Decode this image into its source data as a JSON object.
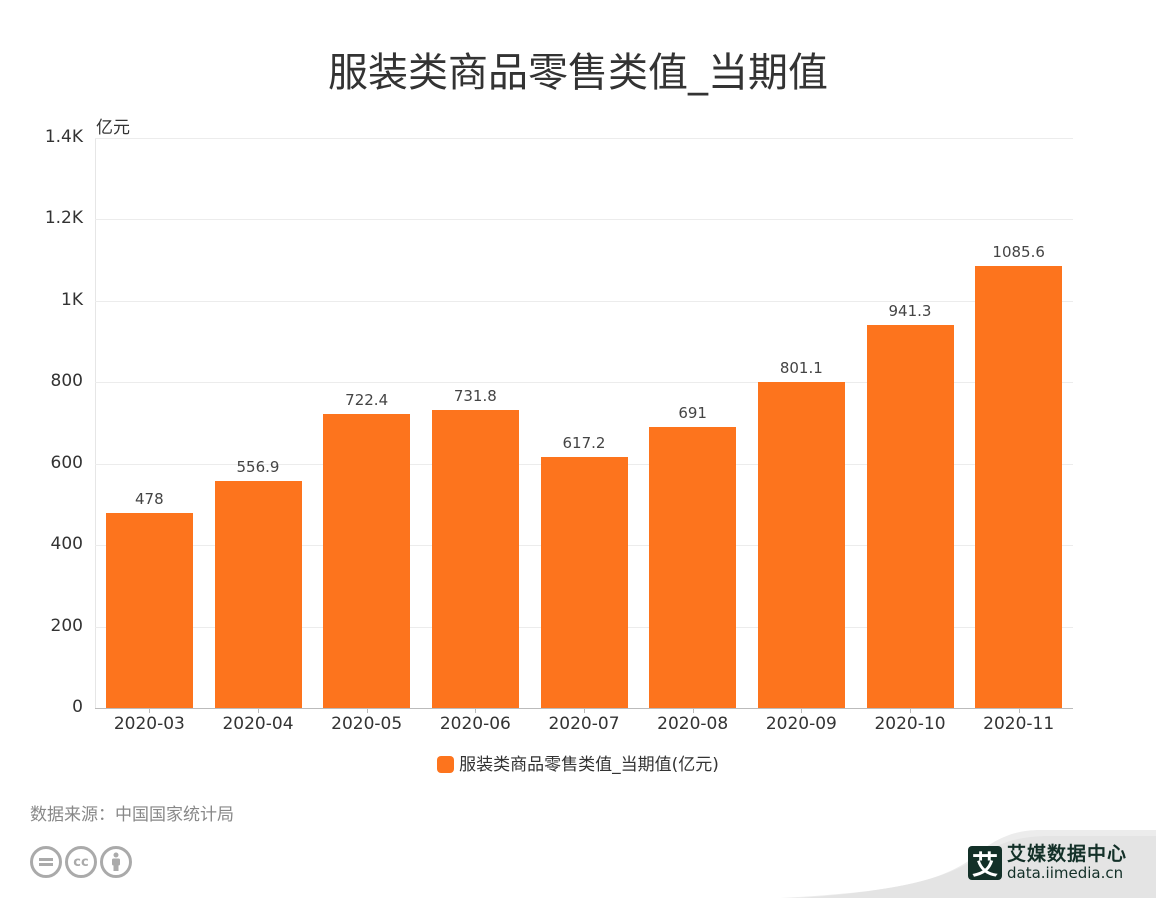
{
  "title": "服装类商品零售类值_当期值",
  "unit_label": "亿元",
  "y_ticks": [
    {
      "label": "1.4K",
      "value": 1400
    },
    {
      "label": "1.2K",
      "value": 1200
    },
    {
      "label": "1K",
      "value": 1000
    },
    {
      "label": "800",
      "value": 800
    },
    {
      "label": "600",
      "value": 600
    },
    {
      "label": "400",
      "value": 400
    },
    {
      "label": "200",
      "value": 200
    },
    {
      "label": "0",
      "value": 0
    }
  ],
  "legend": {
    "label": "服装类商品零售类值_当期值(亿元)",
    "color": "#fd741d"
  },
  "source": "数据来源：中国国家统计局",
  "license_icons": [
    "cc-nd-icon",
    "cc-icon",
    "cc-by-icon"
  ],
  "brand": {
    "logo_char": "艾",
    "name": "艾媒数据中心",
    "url": "data.iimedia.cn"
  },
  "chart_data": {
    "type": "bar",
    "title": "服装类商品零售类值_当期值",
    "xlabel": "",
    "ylabel": "亿元",
    "ylim": [
      0,
      1400
    ],
    "grid": true,
    "legend_position": "bottom",
    "categories": [
      "2020-03",
      "2020-04",
      "2020-05",
      "2020-06",
      "2020-07",
      "2020-08",
      "2020-09",
      "2020-10",
      "2020-11"
    ],
    "series": [
      {
        "name": "服装类商品零售类值_当期值(亿元)",
        "color": "#fd741d",
        "values": [
          478,
          556.9,
          722.4,
          731.8,
          617.2,
          691,
          801.1,
          941.3,
          1085.6
        ],
        "labels": [
          "478",
          "556.9",
          "722.4",
          "731.8",
          "617.2",
          "691",
          "801.1",
          "941.3",
          "1085.6"
        ]
      }
    ]
  }
}
